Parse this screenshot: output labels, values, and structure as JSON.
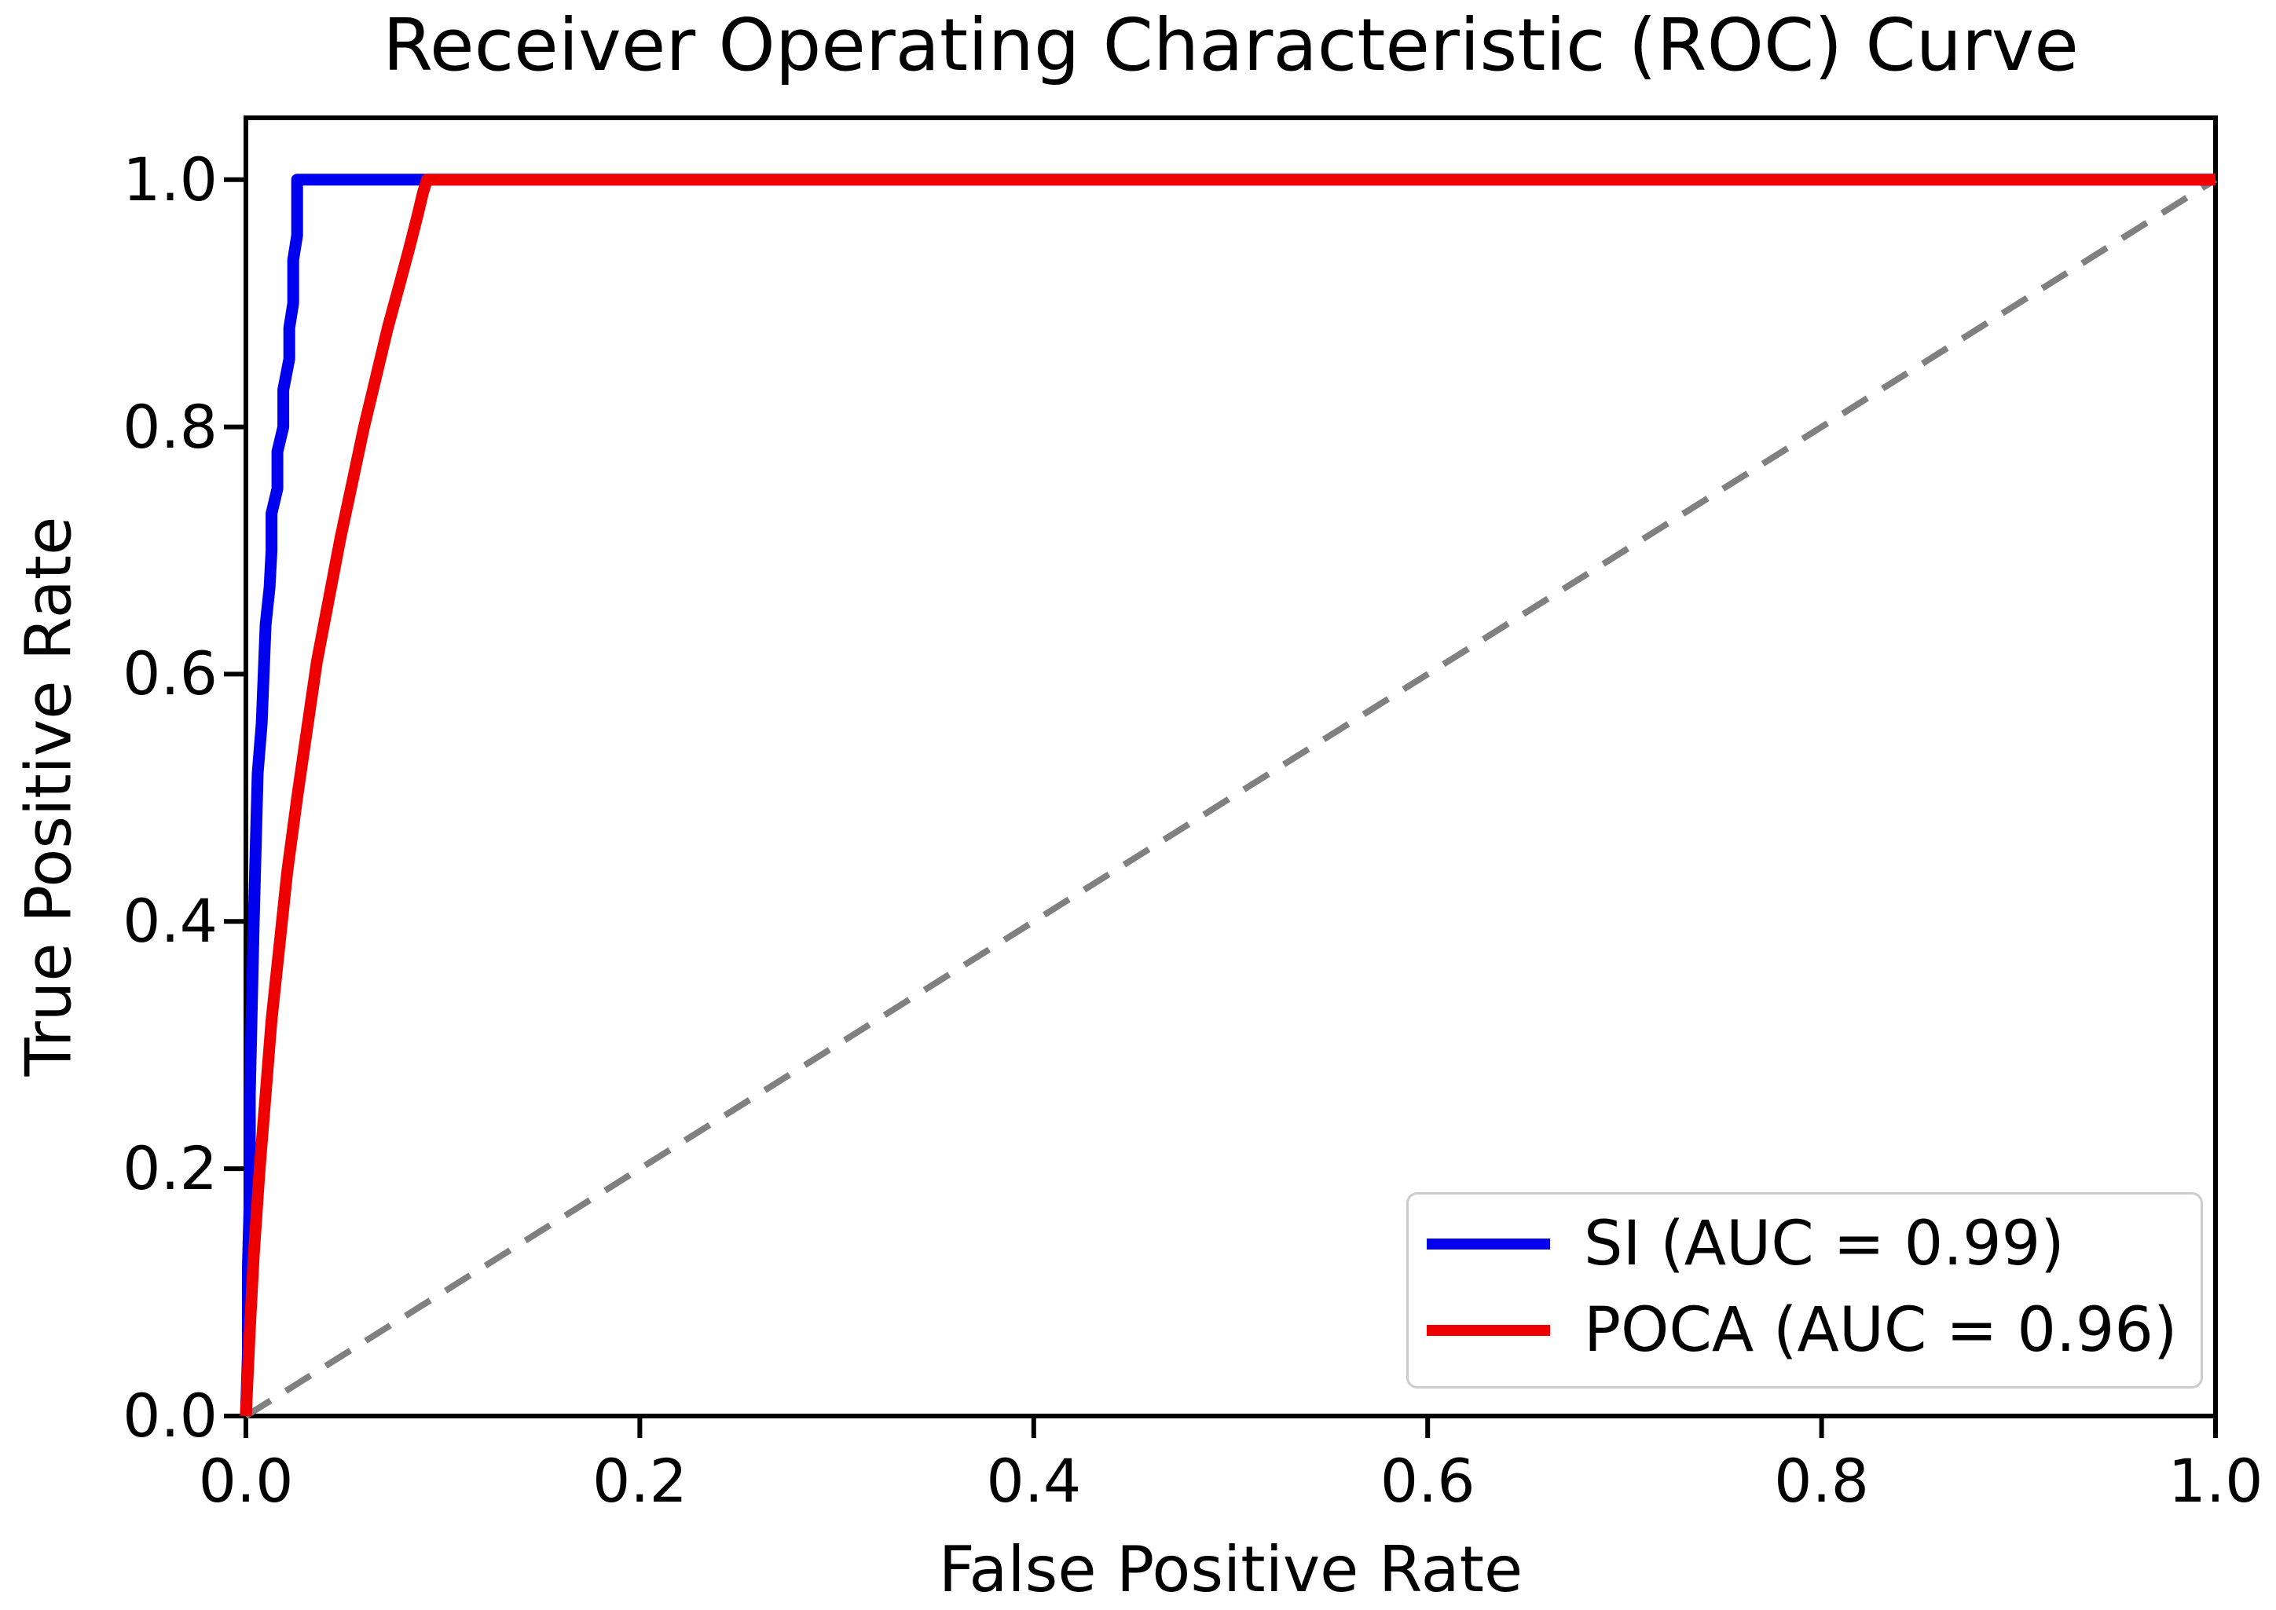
{
  "figure": {
    "background": "#ffffff",
    "text_color": "#000000"
  },
  "chart_data": {
    "type": "line",
    "title": "Receiver Operating Characteristic (ROC) Curve",
    "xlabel": "False Positive Rate",
    "ylabel": "True Positive Rate",
    "xlim": [
      0.0,
      1.0
    ],
    "ylim": [
      0.0,
      1.05
    ],
    "grid": false,
    "axis_color": "#000000",
    "xtick_values": [
      0.0,
      0.2,
      0.4,
      0.6,
      0.8,
      1.0
    ],
    "xtick_labels": [
      "0.0",
      "0.2",
      "0.4",
      "0.6",
      "0.8",
      "1.0"
    ],
    "ytick_values": [
      0.0,
      0.2,
      0.4,
      0.6,
      0.8,
      1.0
    ],
    "ytick_labels": [
      "0.0",
      "0.2",
      "0.4",
      "0.6",
      "0.8",
      "1.0"
    ],
    "series": [
      {
        "key": "si",
        "name": "SI (AUC = 0.99)",
        "auc": 0.99,
        "color": "#0000ee",
        "style": "solid",
        "points": [
          [
            0.0,
            0.0
          ],
          [
            0.001,
            0.05
          ],
          [
            0.001,
            0.12
          ],
          [
            0.002,
            0.18
          ],
          [
            0.002,
            0.26
          ],
          [
            0.003,
            0.33
          ],
          [
            0.004,
            0.4
          ],
          [
            0.005,
            0.46
          ],
          [
            0.006,
            0.52
          ],
          [
            0.008,
            0.56
          ],
          [
            0.009,
            0.6
          ],
          [
            0.01,
            0.64
          ],
          [
            0.012,
            0.67
          ],
          [
            0.013,
            0.7
          ],
          [
            0.013,
            0.73
          ],
          [
            0.016,
            0.75
          ],
          [
            0.016,
            0.78
          ],
          [
            0.019,
            0.8
          ],
          [
            0.019,
            0.83
          ],
          [
            0.022,
            0.855
          ],
          [
            0.022,
            0.88
          ],
          [
            0.024,
            0.9
          ],
          [
            0.024,
            0.935
          ],
          [
            0.026,
            0.955
          ],
          [
            0.026,
            1.0
          ],
          [
            1.0,
            1.0
          ]
        ]
      },
      {
        "key": "poca",
        "name": "POCA (AUC = 0.96)",
        "auc": 0.96,
        "color": "#ee0000",
        "style": "solid",
        "points": [
          [
            0.0,
            0.0
          ],
          [
            0.002,
            0.07
          ],
          [
            0.004,
            0.13
          ],
          [
            0.007,
            0.2
          ],
          [
            0.01,
            0.26
          ],
          [
            0.013,
            0.32
          ],
          [
            0.017,
            0.38
          ],
          [
            0.021,
            0.44
          ],
          [
            0.026,
            0.5
          ],
          [
            0.031,
            0.555
          ],
          [
            0.036,
            0.61
          ],
          [
            0.042,
            0.66
          ],
          [
            0.048,
            0.71
          ],
          [
            0.054,
            0.755
          ],
          [
            0.06,
            0.8
          ],
          [
            0.066,
            0.84
          ],
          [
            0.072,
            0.88
          ],
          [
            0.078,
            0.915
          ],
          [
            0.083,
            0.945
          ],
          [
            0.087,
            0.97
          ],
          [
            0.09,
            0.99
          ],
          [
            0.092,
            1.0
          ],
          [
            1.0,
            1.0
          ]
        ]
      },
      {
        "key": "chance",
        "name": "chance-diagonal",
        "color": "#808080",
        "style": "dashed",
        "points": [
          [
            0.0,
            0.0
          ],
          [
            1.0,
            1.0
          ]
        ]
      }
    ],
    "legend": {
      "position": "lower right",
      "entries": [
        {
          "label": "SI (AUC = 0.99)",
          "color": "#0000ee"
        },
        {
          "label": "POCA (AUC = 0.96)",
          "color": "#ee0000"
        }
      ]
    }
  }
}
